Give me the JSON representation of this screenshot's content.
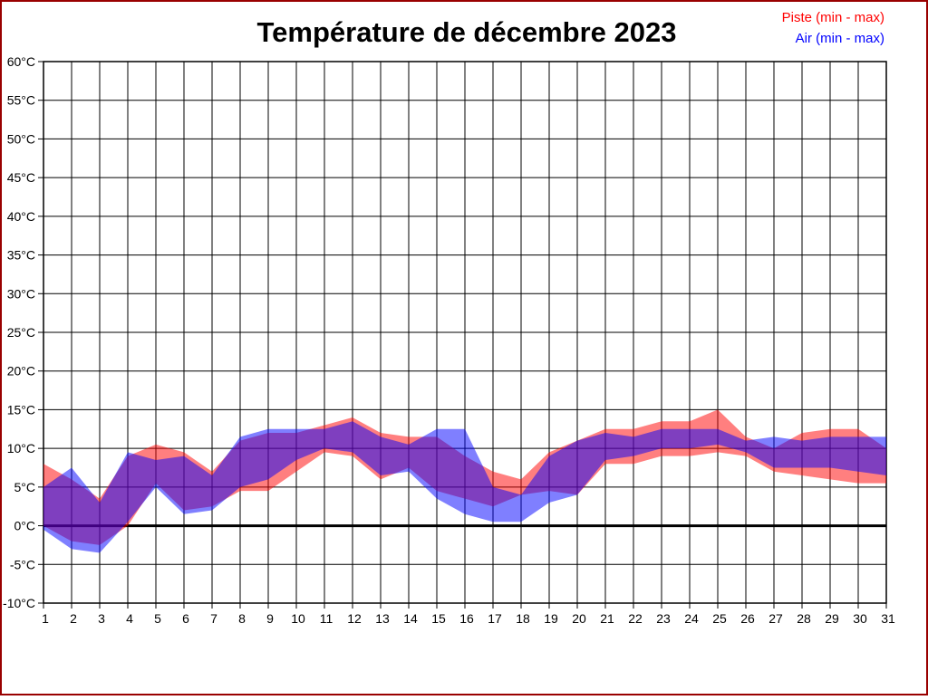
{
  "title": "Température de décembre 2023",
  "legend": {
    "piste": {
      "label": "Piste (min - max)",
      "color": "#ff0000"
    },
    "air": {
      "label": "Air (min - max)",
      "color": "#0000ff"
    }
  },
  "colors": {
    "page_border": "#990000",
    "grid": "#000000",
    "zero_line": "#000000",
    "piste_fill": "#ff0000",
    "air_fill": "#0000ff",
    "fill_opacity": 0.5
  },
  "chart_data": {
    "type": "area",
    "title": "Température de décembre 2023",
    "xlabel": "",
    "ylabel": "",
    "x_days": [
      1,
      2,
      3,
      4,
      5,
      6,
      7,
      8,
      9,
      10,
      11,
      12,
      13,
      14,
      15,
      16,
      17,
      18,
      19,
      20,
      21,
      22,
      23,
      24,
      25,
      26,
      27,
      28,
      29,
      30,
      31
    ],
    "xtick_labels": [
      "1",
      "2",
      "3",
      "4",
      "5",
      "6",
      "7",
      "8",
      "9",
      "10",
      "11",
      "12",
      "13",
      "14",
      "15",
      "16",
      "17",
      "18",
      "19",
      "20",
      "21",
      "22",
      "23",
      "24",
      "25",
      "26",
      "27",
      "28",
      "29",
      "30",
      "31"
    ],
    "ytick_labels": [
      "-10°C",
      "-5°C",
      "0°C",
      "5°C",
      "10°C",
      "15°C",
      "20°C",
      "25°C",
      "30°C",
      "35°C",
      "40°C",
      "45°C",
      "50°C",
      "55°C",
      "60°C"
    ],
    "ylim": [
      -10,
      60
    ],
    "ytick_step": 5,
    "grid": true,
    "zero_line": true,
    "legend_position": "top-right",
    "series": [
      {
        "name": "Piste (min - max)",
        "color": "#ff0000",
        "min": [
          0,
          -2,
          -2.5,
          0,
          5.5,
          2,
          2.5,
          4.5,
          4.5,
          7,
          9.5,
          9,
          6,
          7.5,
          4.5,
          3.5,
          2.5,
          4,
          4.5,
          4,
          8,
          8,
          9,
          9,
          9.5,
          9,
          7,
          6.5,
          6,
          5.5,
          5.5
        ],
        "max": [
          8,
          6,
          3.5,
          9,
          10.5,
          9.5,
          7,
          11,
          12,
          12,
          13,
          14,
          12,
          11.5,
          11.5,
          9,
          7,
          6,
          9.5,
          11,
          12.5,
          12.5,
          13.5,
          13.5,
          15,
          11.5,
          10,
          12,
          12.5,
          12.5,
          10
        ]
      },
      {
        "name": "Air (min - max)",
        "color": "#0000ff",
        "min": [
          -0.5,
          -3,
          -3.5,
          0.5,
          5,
          1.5,
          2,
          5,
          6,
          8.5,
          10,
          9.5,
          6.5,
          7,
          3.5,
          1.5,
          0.5,
          0.5,
          3,
          4,
          8.5,
          9,
          10,
          10,
          10.5,
          9.5,
          7.5,
          7.5,
          7.5,
          7,
          6.5
        ],
        "max": [
          5,
          7.5,
          3,
          9.5,
          8.5,
          9,
          6.5,
          11.5,
          12.5,
          12.5,
          12.5,
          13.5,
          11.5,
          10.5,
          12.5,
          12.5,
          5,
          4,
          9,
          11,
          12,
          11.5,
          12.5,
          12.5,
          12.5,
          11,
          11.5,
          11,
          11.5,
          11.5,
          11.5
        ]
      }
    ]
  }
}
